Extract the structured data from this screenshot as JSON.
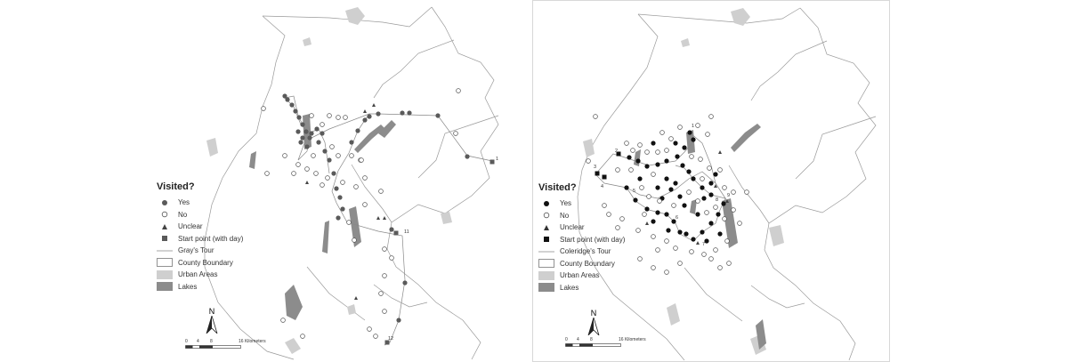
{
  "maps": [
    {
      "id": "gray",
      "legend": {
        "title": "Visited?",
        "items": [
          {
            "symbol": "yes",
            "label": "Yes"
          },
          {
            "symbol": "no",
            "label": "No"
          },
          {
            "symbol": "unclear",
            "label": "Unclear"
          },
          {
            "symbol": "start",
            "label": "Start point (with day)"
          },
          {
            "symbol": "tour",
            "label": "Gray's Tour"
          },
          {
            "symbol": "county",
            "label": "County Boundary"
          },
          {
            "symbol": "urban",
            "label": "Urban Areas"
          },
          {
            "symbol": "lakes",
            "label": "Lakes"
          }
        ]
      },
      "north_label": "N",
      "scale": {
        "ticks": [
          "0",
          "4",
          "8",
          "16 Kilometers"
        ]
      },
      "start_labels": [
        "1",
        "11",
        "12"
      ],
      "yes_color": "#5a5a5a"
    },
    {
      "id": "coleridge",
      "legend": {
        "title": "Visited?",
        "items": [
          {
            "symbol": "yes",
            "label": "Yes"
          },
          {
            "symbol": "no",
            "label": "No"
          },
          {
            "symbol": "unclear",
            "label": "Unclear"
          },
          {
            "symbol": "start",
            "label": "Start point (with day)"
          },
          {
            "symbol": "tour",
            "label": "Coleridge's Tour"
          },
          {
            "symbol": "county",
            "label": "County Boundary"
          },
          {
            "symbol": "urban",
            "label": "Urban Areas"
          },
          {
            "symbol": "lakes",
            "label": "Lakes"
          }
        ]
      },
      "north_label": "N",
      "scale": {
        "ticks": [
          "0",
          "4",
          "8",
          "16 Kilometers"
        ]
      },
      "start_labels": [
        "1",
        "2",
        "3",
        "4",
        "5",
        "6",
        "7",
        "8",
        "9"
      ],
      "yes_color": "#111111"
    }
  ],
  "colors": {
    "boundary": "#9a9a9a",
    "lake": "#8c8c8c",
    "urban": "#cfcfcf",
    "route": "#888888"
  }
}
